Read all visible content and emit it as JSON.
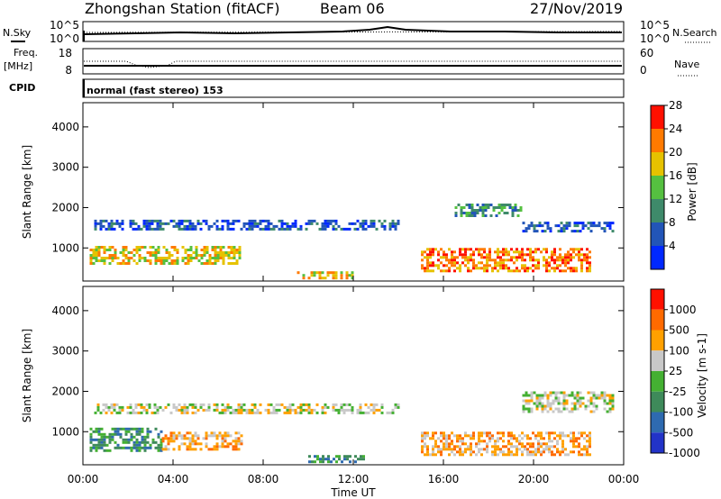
{
  "header": {
    "station": "Zhongshan Station (fitACF)",
    "beam": "Beam 06",
    "date": "27/Nov/2019"
  },
  "noise_panel": {
    "left_label": "N.Sky",
    "right_label": "N.Search",
    "ticks_left": [
      "10^5",
      "10^0"
    ],
    "ticks_right": [
      "10^5",
      "10^0"
    ]
  },
  "freq_panel": {
    "left_label_1": "Freq.",
    "left_label_2": "[MHz]",
    "right_label": "Nave",
    "ticks_left": [
      "18",
      "8"
    ],
    "ticks_right": [
      "60",
      "0"
    ]
  },
  "cpid": {
    "label": "CPID",
    "text": "normal (fast stereo) 153"
  },
  "chart_data": [
    {
      "type": "heatmap",
      "title": "",
      "ylabel": "Slant Range [km]",
      "ylim": [
        180,
        4600
      ],
      "yticks": [
        "1000",
        "2000",
        "3000",
        "4000"
      ],
      "colorbar_label": "Power [dB]",
      "colorbar_ticks": [
        "4",
        "8",
        "12",
        "16",
        "20",
        "24",
        "28"
      ],
      "colors": [
        "#0028ff",
        "#2255b8",
        "#3e8a6a",
        "#55c040",
        "#e6c200",
        "#ff7a00",
        "#ff1000"
      ],
      "bands": [
        {
          "t0": 0.5,
          "t1": 14.0,
          "r0": 1450,
          "r1": 1700,
          "level": 1
        },
        {
          "t0": 0.3,
          "t1": 7.0,
          "r0": 600,
          "r1": 1050,
          "level": 4
        },
        {
          "t0": 15.0,
          "t1": 22.5,
          "r0": 450,
          "r1": 1000,
          "level": 5
        },
        {
          "t0": 19.5,
          "t1": 23.5,
          "r0": 1400,
          "r1": 1650,
          "level": 1
        },
        {
          "t0": 16.5,
          "t1": 19.5,
          "r0": 1800,
          "r1": 2100,
          "level": 2
        },
        {
          "t0": 9.5,
          "t1": 12.0,
          "r0": 250,
          "r1": 420,
          "level": 4
        }
      ]
    },
    {
      "type": "heatmap",
      "title": "",
      "ylabel": "Slant Range [km]",
      "xlabel": "Time UT",
      "ylim": [
        180,
        4600
      ],
      "xlim": [
        0,
        24
      ],
      "yticks": [
        "1000",
        "2000",
        "3000",
        "4000"
      ],
      "xticks": [
        "00:00",
        "04:00",
        "08:00",
        "12:00",
        "16:00",
        "20:00",
        "00:00"
      ],
      "colorbar_label": "Velocity [m s-1]",
      "colorbar_ticks": [
        "1000",
        "500",
        "100",
        "25",
        "-25",
        "-100",
        "-500",
        "-1000"
      ],
      "colors": [
        "#2233c8",
        "#2e6ab0",
        "#3e8a5a",
        "#44b032",
        "#c8c8c8",
        "#ffa000",
        "#ff6a00",
        "#ff1000"
      ],
      "bands": [
        {
          "t0": 0.5,
          "t1": 14.0,
          "r0": 1450,
          "r1": 1700,
          "level": 4
        },
        {
          "t0": 0.3,
          "t1": 3.5,
          "r0": 550,
          "r1": 1100,
          "level": 2
        },
        {
          "t0": 3.5,
          "t1": 7.0,
          "r0": 550,
          "r1": 1000,
          "level": 5
        },
        {
          "t0": 15.0,
          "t1": 22.5,
          "r0": 450,
          "r1": 1000,
          "level": 5
        },
        {
          "t0": 19.5,
          "t1": 23.5,
          "r0": 1500,
          "r1": 2000,
          "level": 4
        },
        {
          "t0": 10.0,
          "t1": 12.5,
          "r0": 250,
          "r1": 420,
          "level": 2
        }
      ]
    }
  ]
}
